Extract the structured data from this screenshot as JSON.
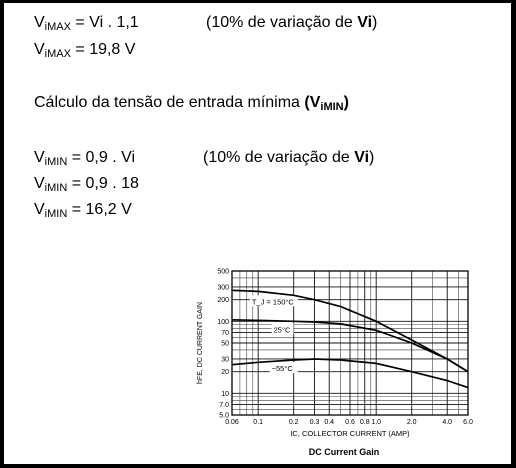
{
  "text": {
    "l1": {
      "sym": "V",
      "sub": "iMAX",
      "expr": " = Vi . 1,1"
    },
    "n1": {
      "pre": "(10% de variação de ",
      "bold": "Vi",
      "post": ")"
    },
    "l2": {
      "sym": "V",
      "sub": "iMAX",
      "expr": " = 19,8 V"
    },
    "heading": {
      "pre": "Cálculo da tensão de entrada mínima  ",
      "bold_open": "(V",
      "bold_sub": "iMIN",
      "bold_close": ")"
    },
    "l3": {
      "sym": "V",
      "sub": "iMIN",
      "expr": " = 0,9 . Vi"
    },
    "n2": {
      "pre": "(10% de variação de ",
      "bold": "Vi",
      "post": ")"
    },
    "l4": {
      "sym": "V",
      "sub": "iMIN",
      "expr": " = 0,9 . 18"
    },
    "l5": {
      "sym": "V",
      "sub": "iMIN",
      "expr": " = 16,2 V"
    }
  },
  "chart_data": {
    "type": "line",
    "title": "DC Current Gain",
    "xlabel": "I_C, COLLECTOR CURRENT (AMP)",
    "ylabel": "h_FE, DC CURRENT GAIN",
    "x_scale": "log",
    "y_scale": "log",
    "xlim": [
      0.06,
      6.0
    ],
    "ylim": [
      5.0,
      500
    ],
    "x_ticks": [
      {
        "v": 0.06,
        "label": "0.06"
      },
      {
        "v": 0.1,
        "label": "0.1"
      },
      {
        "v": 0.2,
        "label": "0.2"
      },
      {
        "v": 0.3,
        "label": "0.3"
      },
      {
        "v": 0.4,
        "label": "0.4"
      },
      {
        "v": 0.6,
        "label": "0.6"
      },
      {
        "v": 0.8,
        "label": "0.8"
      },
      {
        "v": 1.0,
        "label": "1.0"
      },
      {
        "v": 2.0,
        "label": "2.0"
      },
      {
        "v": 4.0,
        "label": "4.0"
      },
      {
        "v": 6.0,
        "label": "6.0"
      }
    ],
    "y_ticks": [
      {
        "v": 500,
        "label": "500"
      },
      {
        "v": 300,
        "label": "300"
      },
      {
        "v": 200,
        "label": "200"
      },
      {
        "v": 100,
        "label": "100"
      },
      {
        "v": 70,
        "label": "70"
      },
      {
        "v": 50,
        "label": "50"
      },
      {
        "v": 30,
        "label": "30"
      },
      {
        "v": 20,
        "label": "20"
      },
      {
        "v": 10,
        "label": "10"
      },
      {
        "v": 7.0,
        "label": "7.0"
      },
      {
        "v": 5.0,
        "label": "5.0"
      }
    ],
    "grid": true,
    "series": [
      {
        "name": "T_J = 150°C",
        "x": [
          0.06,
          0.1,
          0.2,
          0.3,
          0.5,
          1.0,
          2.0,
          4.0,
          6.0
        ],
        "y": [
          270,
          260,
          230,
          200,
          160,
          100,
          55,
          30,
          20
        ]
      },
      {
        "name": "25°C",
        "x": [
          0.06,
          0.1,
          0.2,
          0.3,
          0.5,
          1.0,
          2.0,
          4.0,
          6.0
        ],
        "y": [
          105,
          103,
          100,
          98,
          92,
          75,
          50,
          30,
          20
        ]
      },
      {
        "name": "−55°C",
        "x": [
          0.06,
          0.1,
          0.2,
          0.3,
          0.5,
          1.0,
          2.0,
          4.0,
          6.0
        ],
        "y": [
          25,
          27,
          29,
          30,
          29,
          26,
          20,
          15,
          12
        ]
      }
    ]
  }
}
